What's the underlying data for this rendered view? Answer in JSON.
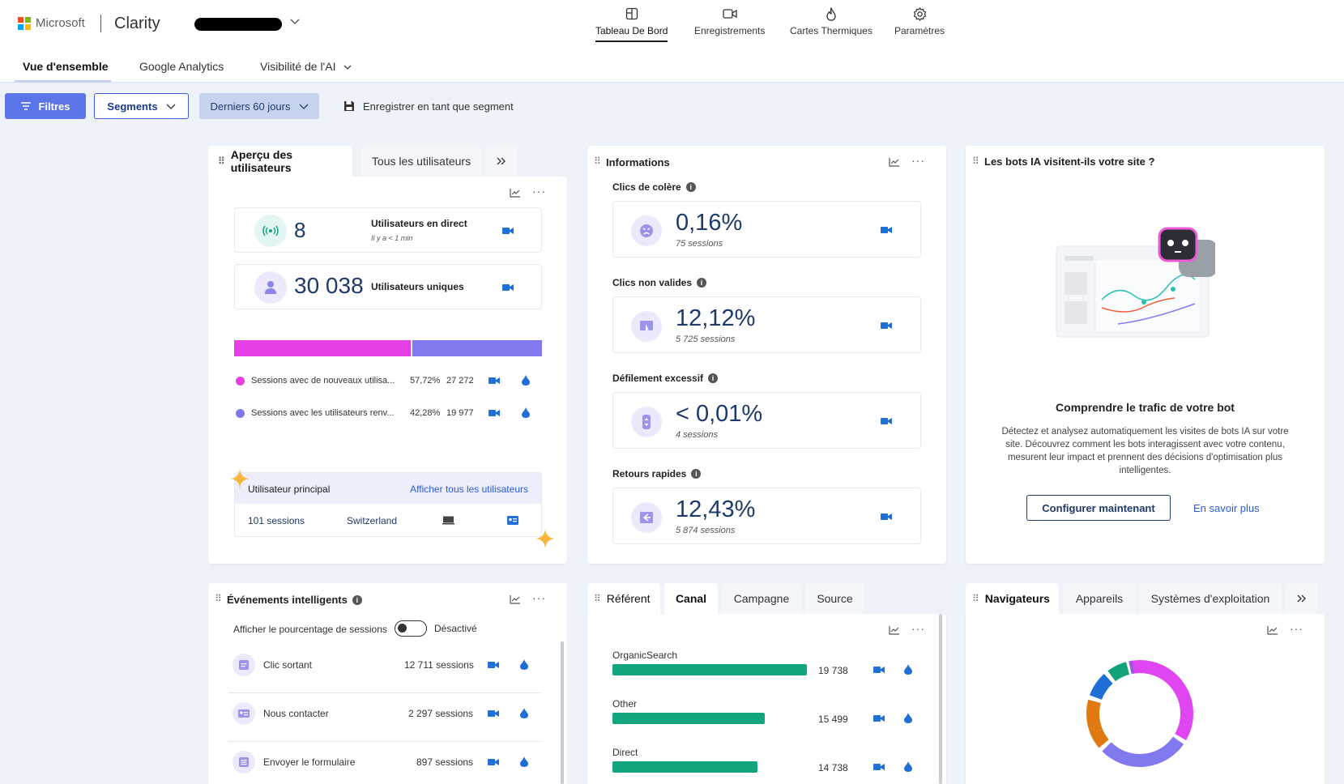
{
  "header": {
    "brand": "Microsoft",
    "product": "Clarity",
    "nav": [
      {
        "label": "Tableau De Bord",
        "icon": "dashboard-icon",
        "active": true
      },
      {
        "label": "Enregistrements",
        "icon": "video-icon"
      },
      {
        "label": "Cartes Thermiques",
        "icon": "flame-icon"
      },
      {
        "label": "Paramètres",
        "icon": "gear-icon"
      }
    ]
  },
  "subtabs": [
    {
      "label": "Vue d'ensemble",
      "active": true
    },
    {
      "label": "Google Analytics"
    },
    {
      "label": "Visibilité de l'AI"
    }
  ],
  "filters": {
    "filtres": "Filtres",
    "segments": "Segments",
    "date": "Derniers 60 jours",
    "save": "Enregistrer en tant que segment"
  },
  "users_card": {
    "tab_active": "Aperçu des utilisateurs",
    "tab_inactive": "Tous les utilisateurs",
    "live_value": "8",
    "live_label": "Utilisateurs en direct",
    "live_sub": "Il y a < 1 min",
    "unique_value": "30 038",
    "unique_label": "Utilisateurs uniques",
    "split": [
      {
        "label": "Sessions avec de nouveaux utilisa...",
        "pct": "57,72%",
        "count": "27 272",
        "color": "#e63fe6",
        "fraction": 0.5772
      },
      {
        "label": "Sessions avec les utilisateurs renv...",
        "pct": "42,28%",
        "count": "19 977",
        "color": "#8079ef",
        "fraction": 0.4228
      }
    ],
    "top_user_title": "Utilisateur principal",
    "top_user_link": "Afficher tous les utilisateurs",
    "top_user_sessions": "101 sessions",
    "top_user_country": "Switzerland"
  },
  "info_card": {
    "title": "Informations",
    "metrics": [
      {
        "label": "Clics de colère",
        "value": "0,16%",
        "sessions": "75 sessions",
        "icon": "angry-face-icon"
      },
      {
        "label": "Clics non valides",
        "value": "12,12%",
        "sessions": "5 725 sessions",
        "icon": "cursor-icon"
      },
      {
        "label": "Défilement excessif",
        "value": "< 0,01%",
        "sessions": "4 sessions",
        "icon": "scroll-icon"
      },
      {
        "label": "Retours rapides",
        "value": "12,43%",
        "sessions": "5 874 sessions",
        "icon": "back-icon"
      }
    ]
  },
  "bots_card": {
    "title": "Les bots IA visitent-ils votre site ?",
    "heading": "Comprendre le trafic de votre bot",
    "body_lines": [
      "Détectez et analysez automatiquement les visites de bots IA sur votre",
      "site. Découvrez comment les bots interagissent avec votre contenu,",
      "mesurent leur impact et prennent des décisions d'optimisation plus",
      "intelligentes."
    ],
    "cta": "Configurer maintenant",
    "link": "En savoir plus"
  },
  "events_card": {
    "title": "Événements intelligents",
    "toggle_label": "Afficher le pourcentage de sessions",
    "toggle_state": "Désactivé",
    "events": [
      {
        "label": "Clic sortant",
        "sessions": "12 711 sessions"
      },
      {
        "label": "Nous contacter",
        "sessions": "2 297 sessions"
      },
      {
        "label": "Envoyer le formulaire",
        "sessions": "897 sessions"
      }
    ]
  },
  "channel_card": {
    "tabs": [
      "Référent",
      "Canal",
      "Campagne",
      "Source"
    ],
    "active_tab": "Canal",
    "rows": [
      {
        "label": "OrganicSearch",
        "value": "19 738",
        "raw": 19738
      },
      {
        "label": "Other",
        "value": "15 499",
        "raw": 15499
      },
      {
        "label": "Direct",
        "value": "14 738",
        "raw": 14738
      }
    ],
    "bar_color": "#12a67f"
  },
  "browser_card": {
    "tabs": [
      "Navigateurs",
      "Appareils",
      "Systèmes d'exploitation"
    ],
    "active_tab": "Navigateurs",
    "donut_colors": [
      "#e045f2",
      "#8079ef",
      "#e07a10",
      "#1f6fd6",
      "#13a37a",
      "#9a57e0"
    ]
  }
}
